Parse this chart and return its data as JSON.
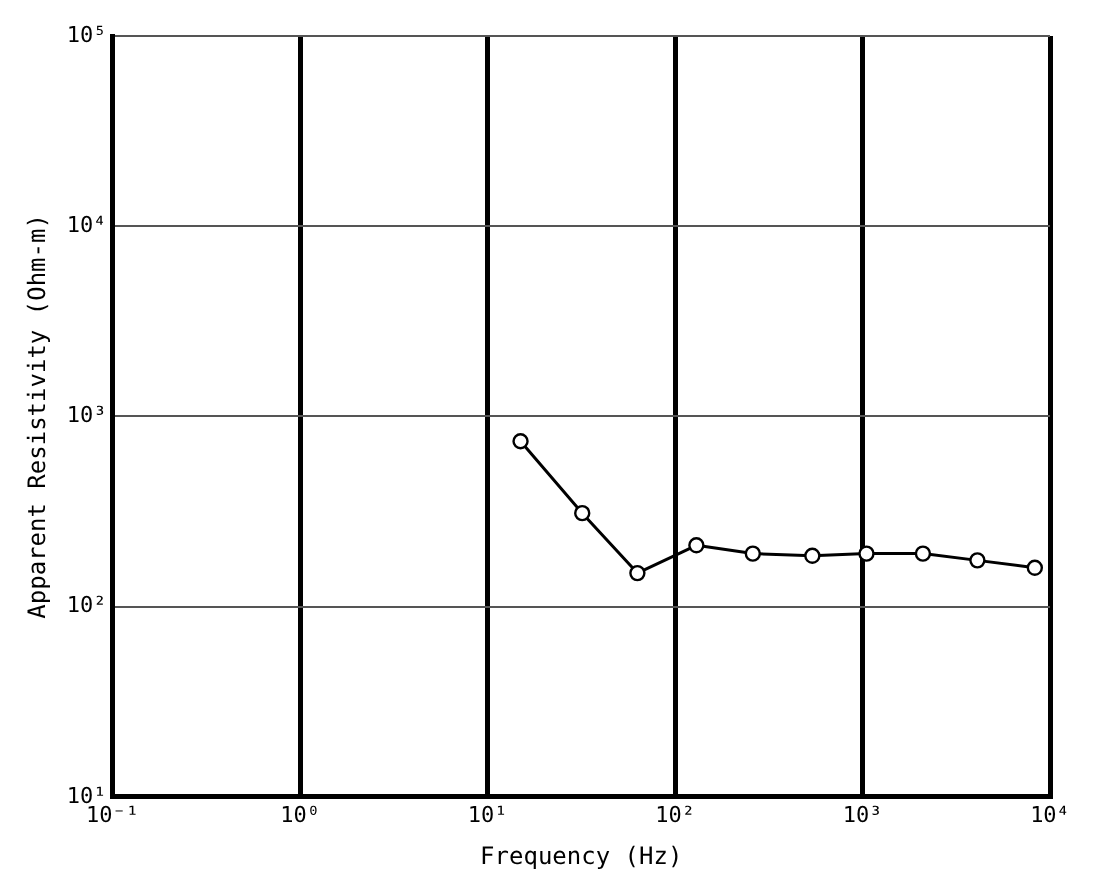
{
  "chart_data": {
    "type": "line",
    "xlabel": "Frequency (Hz)",
    "ylabel": "Apparent Resistivity (Ohm-m)",
    "log": "xy",
    "grid": true,
    "marker": "circle",
    "line_style": "solid",
    "x": [
      15,
      32,
      63,
      130,
      260,
      540,
      1050,
      2100,
      4100,
      8300
    ],
    "series": [
      {
        "color": "#000000",
        "values": [
          740,
          310,
          150,
          210,
          190,
          185,
          190,
          190,
          175,
          160
        ]
      }
    ],
    "xlim": [
      0.1,
      10000
    ],
    "ylim": [
      10,
      100000
    ],
    "xticks": [
      {
        "value": 0.1,
        "label": "10⁻¹"
      },
      {
        "value": 1,
        "label": "10⁰"
      },
      {
        "value": 10,
        "label": "10¹"
      },
      {
        "value": 100,
        "label": "10²"
      },
      {
        "value": 1000,
        "label": "10³"
      },
      {
        "value": 10000,
        "label": "10⁴"
      }
    ],
    "yticks": [
      {
        "value": 10,
        "label": "10¹"
      },
      {
        "value": 100,
        "label": "10²"
      },
      {
        "value": 1000,
        "label": "10³"
      },
      {
        "value": 10000,
        "label": "10⁴"
      },
      {
        "value": 100000,
        "label": "10⁵"
      }
    ]
  }
}
